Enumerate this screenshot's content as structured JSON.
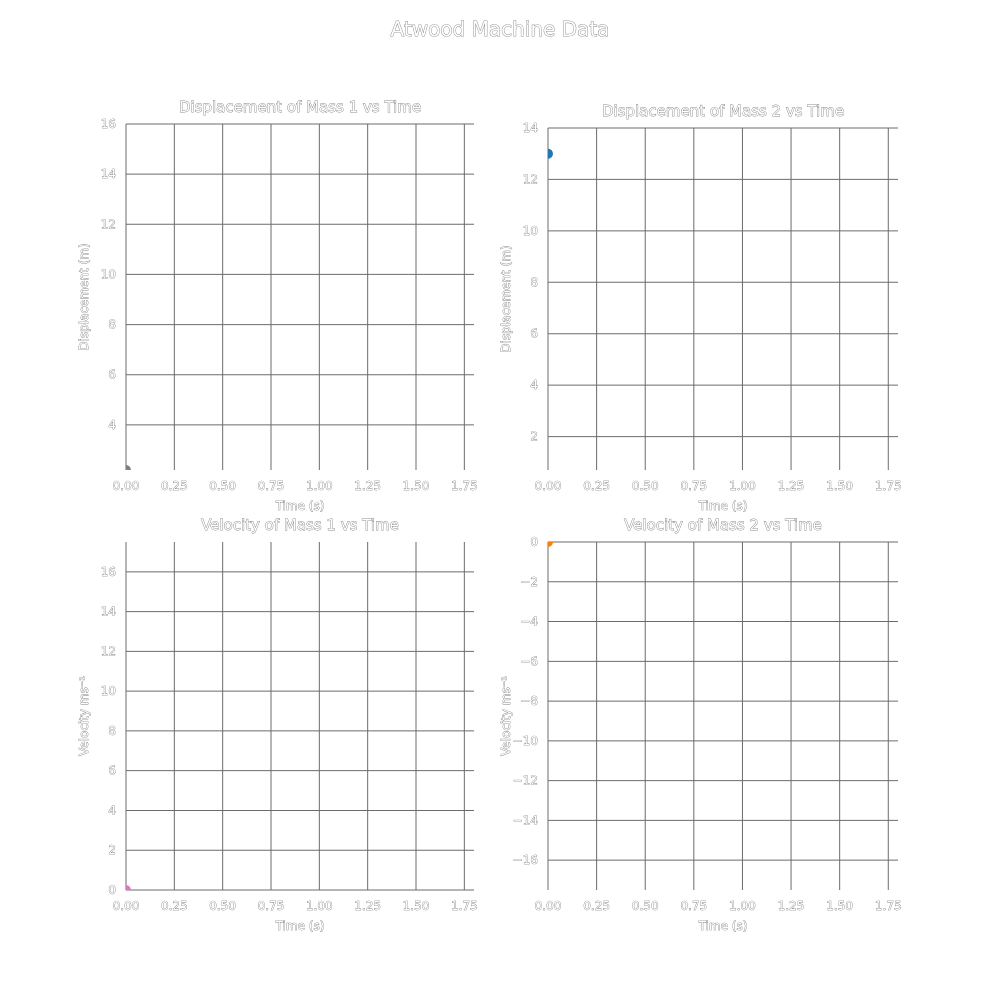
{
  "figure": {
    "title": "Atwood Machine Data"
  },
  "chart_data": [
    {
      "type": "scatter",
      "title": "Displacement of Mass 1 vs Time",
      "xlabel": "Time (s)",
      "ylabel": "Displacement (m)",
      "xlim": [
        0,
        1.8
      ],
      "ylim": [
        2.2,
        16
      ],
      "xticks": [
        0,
        0.25,
        0.5,
        0.75,
        1.0,
        1.25,
        1.5,
        1.75
      ],
      "xtick_labels": [
        "0.00",
        "0.25",
        "0.50",
        "0.75",
        "1.00",
        "1.25",
        "1.50",
        "1.75"
      ],
      "yticks": [
        4,
        6,
        8,
        10,
        12,
        14,
        16
      ],
      "ytick_labels": [
        "4",
        "6",
        "8",
        "10",
        "12",
        "14",
        "16"
      ],
      "series": [
        {
          "name": "Mass 1",
          "color": "#7f7f7f",
          "x": [
            0
          ],
          "y": [
            2.2
          ]
        }
      ]
    },
    {
      "type": "scatter",
      "title": "Displacement of Mass 2 vs Time",
      "xlabel": "Time (s)",
      "ylabel": "Displacement (m)",
      "xlim": [
        0,
        1.8
      ],
      "ylim": [
        0.7,
        14
      ],
      "xticks": [
        0,
        0.25,
        0.5,
        0.75,
        1.0,
        1.25,
        1.5,
        1.75
      ],
      "xtick_labels": [
        "0.00",
        "0.25",
        "0.50",
        "0.75",
        "1.00",
        "1.25",
        "1.50",
        "1.75"
      ],
      "yticks": [
        2,
        4,
        6,
        8,
        10,
        12,
        14
      ],
      "ytick_labels": [
        "2",
        "4",
        "6",
        "8",
        "10",
        "12",
        "14"
      ],
      "series": [
        {
          "name": "Mass 2",
          "color": "#1f77b4",
          "x": [
            0
          ],
          "y": [
            13
          ]
        }
      ]
    },
    {
      "type": "scatter",
      "title": "Velocity of Mass 1 vs Time",
      "xlabel": "Time (s)",
      "ylabel": "Velocity ms⁻¹",
      "xlim": [
        0,
        1.8
      ],
      "ylim": [
        0,
        17.5
      ],
      "xticks": [
        0,
        0.25,
        0.5,
        0.75,
        1.0,
        1.25,
        1.5,
        1.75
      ],
      "xtick_labels": [
        "0.00",
        "0.25",
        "0.50",
        "0.75",
        "1.00",
        "1.25",
        "1.50",
        "1.75"
      ],
      "yticks": [
        0,
        2,
        4,
        6,
        8,
        10,
        12,
        14,
        16
      ],
      "ytick_labels": [
        "0",
        "2",
        "4",
        "6",
        "8",
        "10",
        "12",
        "14",
        "16"
      ],
      "series": [
        {
          "name": "Mass 1",
          "color": "#e377c2",
          "x": [
            0
          ],
          "y": [
            0
          ]
        }
      ]
    },
    {
      "type": "scatter",
      "title": "Velocity of Mass 2 vs Time",
      "xlabel": "Time (s)",
      "ylabel": "Velocity ms⁻¹",
      "xlim": [
        0,
        1.8
      ],
      "ylim": [
        -17.5,
        0
      ],
      "xticks": [
        0,
        0.25,
        0.5,
        0.75,
        1.0,
        1.25,
        1.5,
        1.75
      ],
      "xtick_labels": [
        "0.00",
        "0.25",
        "0.50",
        "0.75",
        "1.00",
        "1.25",
        "1.50",
        "1.75"
      ],
      "yticks": [
        0,
        -2,
        -4,
        -6,
        -8,
        -10,
        -12,
        -14,
        -16
      ],
      "ytick_labels": [
        "0",
        "−2",
        "−4",
        "−6",
        "−8",
        "−10",
        "−12",
        "−14",
        "−16"
      ],
      "series": [
        {
          "name": "Mass 2",
          "color": "#ff7f0e",
          "x": [
            0
          ],
          "y": [
            0
          ]
        }
      ]
    }
  ]
}
